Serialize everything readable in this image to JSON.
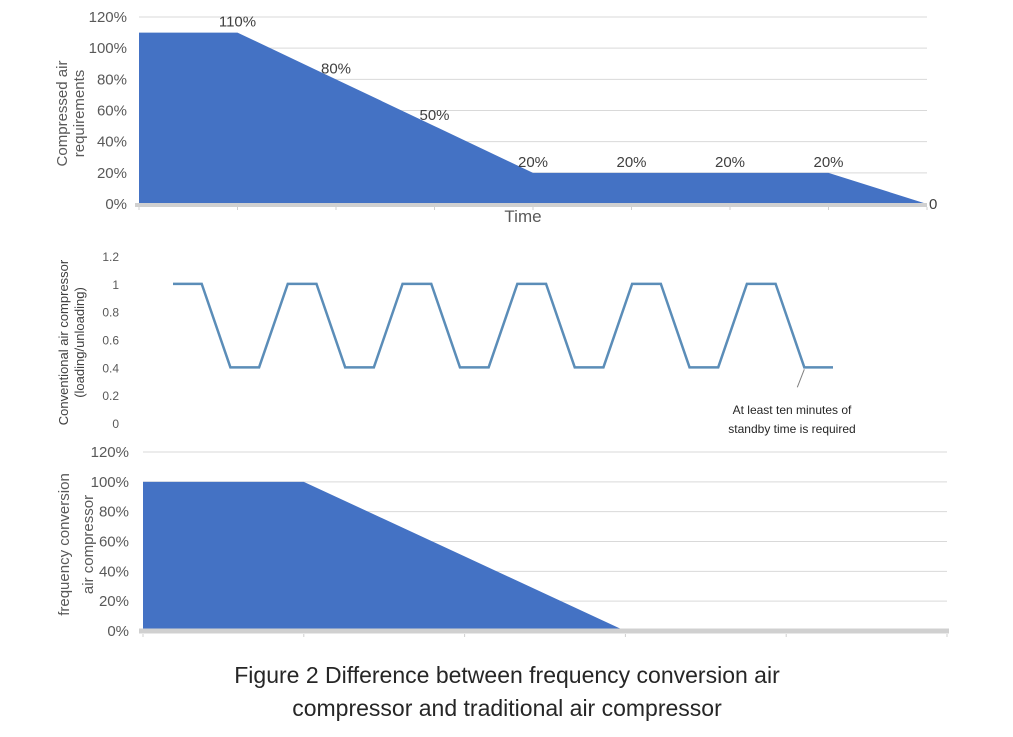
{
  "caption": {
    "line1": "Figure 2 Difference between frequency conversion air",
    "line2": "compressor and traditional air compressor"
  },
  "chart_data": [
    {
      "type": "area",
      "ylabel": "Compressed air requirements",
      "ylabel_lines": [
        "Compressed air",
        "requirements"
      ],
      "xlabel": "Time",
      "yticks": [
        "0%",
        "20%",
        "40%",
        "60%",
        "80%",
        "100%",
        "120%"
      ],
      "ylim": [
        0,
        120
      ],
      "grid": true,
      "color": "#4472C4",
      "x": [
        0,
        1,
        2,
        3,
        4,
        5,
        6,
        7,
        8
      ],
      "values": [
        110,
        110,
        80,
        50,
        20,
        20,
        20,
        20,
        0
      ],
      "data_labels": [
        {
          "index": 1,
          "text": "110%"
        },
        {
          "index": 2,
          "text": "80%"
        },
        {
          "index": 3,
          "text": "50%"
        },
        {
          "index": 4,
          "text": "20%"
        },
        {
          "index": 5,
          "text": "20%"
        },
        {
          "index": 6,
          "text": "20%"
        },
        {
          "index": 7,
          "text": "20%"
        },
        {
          "index": 8,
          "text": "0"
        }
      ]
    },
    {
      "type": "line",
      "ylabel": "Conventional air compressor (loading/unloading)",
      "ylabel_lines": [
        "Conventional air compressor",
        "(loading/unloading)"
      ],
      "yticks": [
        "0",
        "0.2",
        "0.4",
        "0.6",
        "0.8",
        "1",
        "1.2"
      ],
      "ylim": [
        0,
        1.2
      ],
      "grid": false,
      "color": "#5B8DB8",
      "x": [
        0,
        1,
        2,
        3,
        4,
        5,
        6,
        7,
        8,
        9,
        10,
        11,
        12,
        13,
        14,
        15,
        16,
        17,
        18,
        19,
        20,
        21,
        22,
        23
      ],
      "values": [
        1,
        1,
        0.4,
        0.4,
        1,
        1,
        0.4,
        0.4,
        1,
        1,
        0.4,
        0.4,
        1,
        1,
        0.4,
        0.4,
        1,
        1,
        0.4,
        0.4,
        1,
        1,
        0.4,
        0.4
      ],
      "annotation": {
        "lines": [
          "At least ten minutes of",
          "standby time is required"
        ],
        "points_to_index": 22
      }
    },
    {
      "type": "area",
      "ylabel": "frequency conversion air compressor",
      "ylabel_lines": [
        "frequency conversion",
        "air compressor"
      ],
      "yticks": [
        "0%",
        "20%",
        "40%",
        "60%",
        "80%",
        "100%",
        "120%"
      ],
      "ylim": [
        0,
        120
      ],
      "grid": true,
      "color": "#4472C4",
      "x": [
        0,
        1,
        2,
        3,
        4,
        5
      ],
      "values": [
        100,
        100,
        50,
        0,
        0,
        0
      ]
    }
  ]
}
